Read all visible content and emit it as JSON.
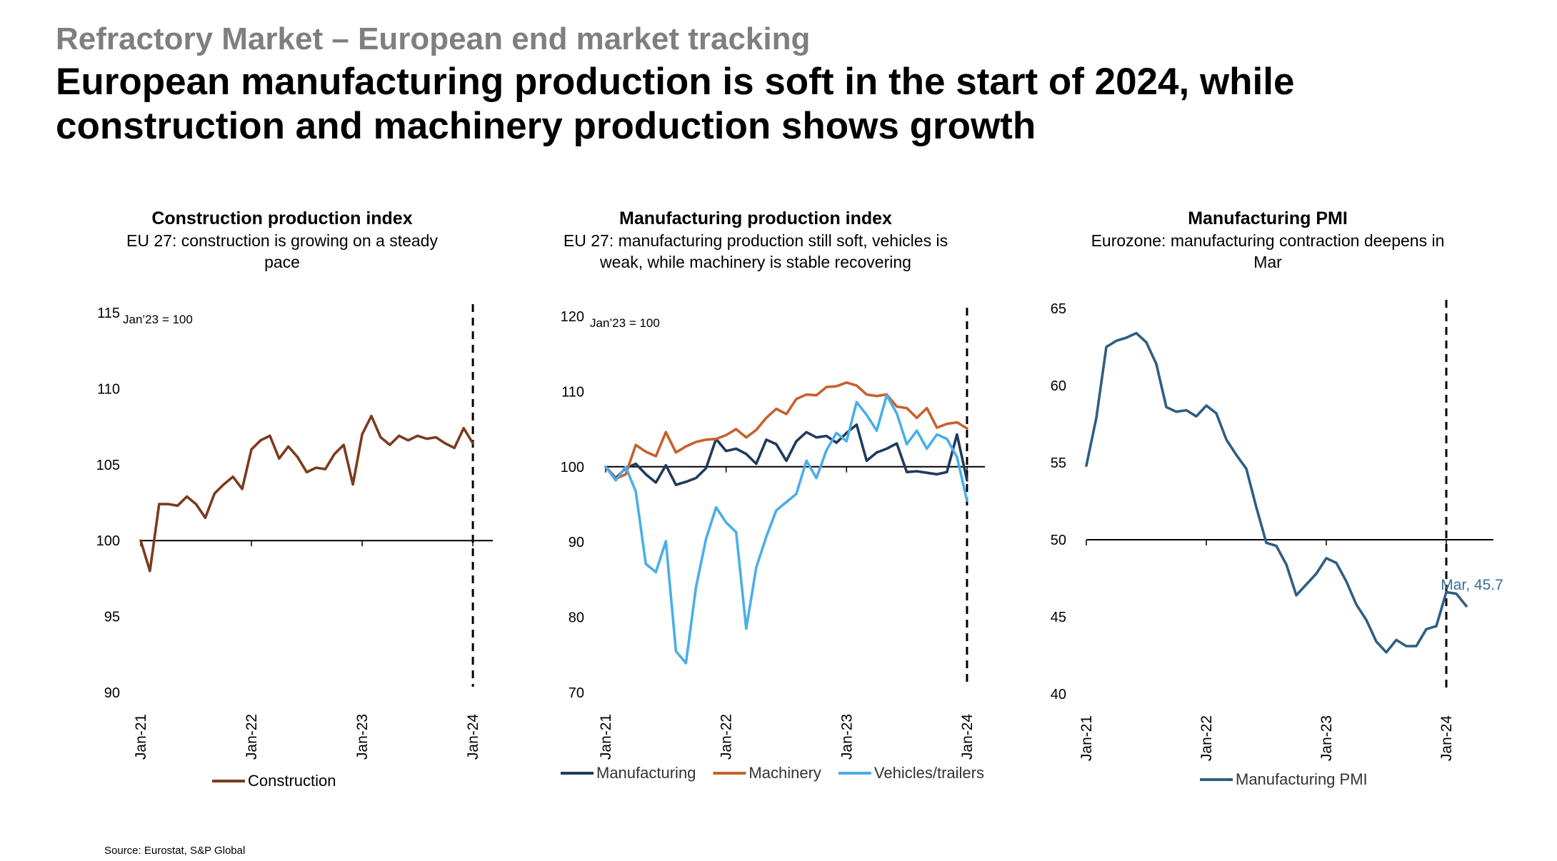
{
  "header": {
    "supertitle": "Refractory Market – European end market tracking",
    "headline": "European manufacturing production is soft in the start of 2024, while construction and machinery production shows growth"
  },
  "source": "Source: Eurostat, S&P Global",
  "colors": {
    "construction": "#7b3b1e",
    "manufacturing": "#1f3a5c",
    "machinery": "#c8602c",
    "vehicles": "#4aaee8",
    "pmi": "#2e5e82",
    "pmi_label": "#3a6f96"
  },
  "chart_data": [
    {
      "type": "line",
      "title": "Construction production index",
      "subtitle": "EU 27: construction is growing on a steady pace",
      "annotation": "Jan’23 = 100",
      "ylim": [
        90,
        115
      ],
      "yticks": [
        90,
        95,
        100,
        105,
        110,
        115
      ],
      "baseline": 100,
      "x_tick_labels": [
        "Jan-21",
        "Jan-22",
        "Jan-23",
        "Jan-24"
      ],
      "x_start": "Jan-21",
      "x_end": "Feb-24",
      "vline_at": "Jan-24",
      "legend_position": "bottom",
      "grid": false,
      "series": [
        {
          "name": "Construction",
          "color": "#7b3b1e",
          "values": [
            100.0,
            98.0,
            102.4,
            102.4,
            102.3,
            102.9,
            102.4,
            101.5,
            103.1,
            103.7,
            104.2,
            103.4,
            106.0,
            106.6,
            106.9,
            105.4,
            106.2,
            105.5,
            104.5,
            104.8,
            104.7,
            105.7,
            106.3,
            103.7,
            107.0,
            108.2,
            106.8,
            106.3,
            106.9,
            106.6,
            106.9,
            106.7,
            106.8,
            106.4,
            106.1,
            107.4,
            106.4
          ]
        }
      ]
    },
    {
      "type": "line",
      "title": "Manufacturing production index",
      "subtitle": "EU 27: manufacturing production still soft, vehicles is weak,  while machinery is stable recovering",
      "annotation": "Jan’23 = 100",
      "ylim": [
        70,
        120
      ],
      "yticks": [
        70,
        80,
        90,
        100,
        110,
        120
      ],
      "baseline": 100,
      "x_tick_labels": [
        "Jan-21",
        "Jan-22",
        "Jan-23",
        "Jan-24"
      ],
      "x_start": "Jan-21",
      "x_end": "Feb-24",
      "vline_at": "Jan-24",
      "legend_position": "bottom",
      "grid": false,
      "series": [
        {
          "name": "Manufacturing",
          "color": "#1f3a5c",
          "values": [
            100.0,
            98.5,
            99.8,
            100.4,
            99.0,
            97.9,
            100.2,
            97.6,
            98.0,
            98.5,
            99.8,
            103.7,
            102.1,
            102.4,
            101.7,
            100.4,
            103.6,
            103.0,
            100.8,
            103.4,
            104.6,
            103.9,
            104.1,
            103.2,
            104.5,
            105.6,
            100.8,
            101.9,
            102.4,
            103.1,
            99.3,
            99.4,
            99.2,
            99.0,
            99.3,
            104.3,
            98.2
          ]
        },
        {
          "name": "Machinery",
          "color": "#c8602c",
          "values": [
            100.0,
            98.4,
            99.0,
            102.9,
            102.0,
            101.4,
            104.6,
            101.9,
            102.7,
            103.3,
            103.6,
            103.7,
            104.2,
            105.0,
            103.9,
            104.9,
            106.5,
            107.7,
            107.0,
            109.0,
            109.6,
            109.5,
            110.6,
            110.7,
            111.2,
            110.8,
            109.6,
            109.4,
            109.6,
            108.0,
            107.8,
            106.5,
            107.8,
            105.2,
            105.7,
            105.9,
            105.1
          ]
        },
        {
          "name": "Vehicles/trailers",
          "color": "#4aaee8",
          "values": [
            100.0,
            98.2,
            100.0,
            96.7,
            87.1,
            86.0,
            90.1,
            75.5,
            73.9,
            84.0,
            90.4,
            94.6,
            92.6,
            91.3,
            78.5,
            86.6,
            90.7,
            94.2,
            95.3,
            96.4,
            100.8,
            98.5,
            102.2,
            104.5,
            103.4,
            108.6,
            106.9,
            104.8,
            109.5,
            107.1,
            103.0,
            104.8,
            102.4,
            104.3,
            103.7,
            101.3,
            95.5
          ]
        }
      ]
    },
    {
      "type": "line",
      "title": "Manufacturing PMI",
      "subtitle": "Eurozone: manufacturing contraction deepens in Mar",
      "ylim": [
        40,
        65
      ],
      "yticks": [
        40,
        45,
        50,
        55,
        60,
        65
      ],
      "baseline": 50,
      "x_tick_labels": [
        "Jan-21",
        "Jan-22",
        "Jan-23",
        "Jan-24"
      ],
      "x_start": "Jan-21",
      "x_end": "Mar-24",
      "vline_at": "Jan-24",
      "legend_position": "bottom",
      "grid": false,
      "end_label": "Mar, 45.7",
      "series": [
        {
          "name": "Manufacturing PMI",
          "color": "#2e5e82",
          "values": [
            54.8,
            57.9,
            62.5,
            62.9,
            63.1,
            63.4,
            62.8,
            61.4,
            58.6,
            58.3,
            58.4,
            58.0,
            58.7,
            58.2,
            56.5,
            55.5,
            54.6,
            52.1,
            49.8,
            49.6,
            48.4,
            46.4,
            47.1,
            47.8,
            48.8,
            48.5,
            47.3,
            45.8,
            44.8,
            43.4,
            42.7,
            43.5,
            43.1,
            43.1,
            44.2,
            44.4,
            46.6,
            46.5,
            45.7
          ]
        }
      ]
    }
  ]
}
